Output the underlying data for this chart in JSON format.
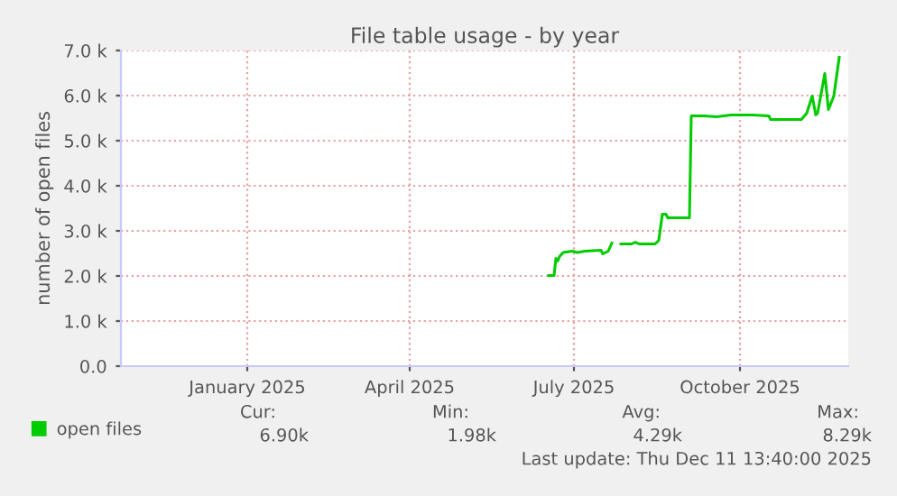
{
  "chart_data": {
    "type": "line",
    "title": "File table usage - by year",
    "ylabel": "number of open files",
    "x": [
      "2025-06-17",
      "2025-06-20",
      "2025-06-21",
      "2025-06-22",
      "2025-06-23",
      "2025-06-25",
      "2025-06-30",
      "2025-07-03",
      "2025-07-07",
      "2025-07-16",
      "2025-07-17",
      "2025-07-20",
      "2025-07-22",
      "2025-07-24",
      "2025-07-27",
      "2025-08-02",
      "2025-08-04",
      "2025-08-06",
      "2025-08-15",
      "2025-08-17",
      "2025-08-19",
      "2025-08-21",
      "2025-08-22",
      "2025-09-01",
      "2025-09-03",
      "2025-09-04",
      "2025-09-11",
      "2025-09-18",
      "2025-09-26",
      "2025-10-08",
      "2025-10-17",
      "2025-10-18",
      "2025-11-04",
      "2025-11-07",
      "2025-11-10",
      "2025-11-12",
      "2025-11-13",
      "2025-11-17",
      "2025-11-19",
      "2025-11-22",
      "2025-11-25"
    ],
    "series": [
      {
        "name": "open files",
        "color": "#00cc00",
        "values": [
          2010,
          2010,
          2390,
          2330,
          2430,
          2520,
          2550,
          2520,
          2550,
          2570,
          2490,
          2550,
          2730,
          null,
          2710,
          2710,
          2750,
          2710,
          2710,
          2790,
          3370,
          3370,
          3290,
          3290,
          3290,
          5550,
          5550,
          5530,
          5570,
          5570,
          5550,
          5470,
          5470,
          5610,
          5990,
          5570,
          5610,
          6490,
          5690,
          5990,
          6850
        ]
      }
    ],
    "xlim": [
      "2024-10-23",
      "2025-11-30"
    ],
    "xticks": [
      {
        "value": "2025-01-01",
        "label": "January 2025"
      },
      {
        "value": "2025-04-01",
        "label": "April 2025"
      },
      {
        "value": "2025-07-01",
        "label": "July 2025"
      },
      {
        "value": "2025-10-01",
        "label": "October 2025"
      }
    ],
    "ylim": [
      0,
      7000
    ],
    "yticks": [
      {
        "value": 0,
        "label": "0.0"
      },
      {
        "value": 1000,
        "label": "1.0 k"
      },
      {
        "value": 2000,
        "label": "2.0 k"
      },
      {
        "value": 3000,
        "label": "3.0 k"
      },
      {
        "value": 4000,
        "label": "4.0 k"
      },
      {
        "value": 5000,
        "label": "5.0 k"
      },
      {
        "value": 6000,
        "label": "6.0 k"
      },
      {
        "value": 7000,
        "label": "7.0 k"
      }
    ],
    "grid": true,
    "legend": "bottom left",
    "marker": "none",
    "line_style": "solid",
    "annotations": [
      "Cur:",
      "Min:",
      "Avg:",
      "Max:",
      "6.90k",
      "1.98k",
      "4.29k",
      "8.29k",
      "Last update: Thu Dec 11 13:40:00 2025"
    ]
  }
}
